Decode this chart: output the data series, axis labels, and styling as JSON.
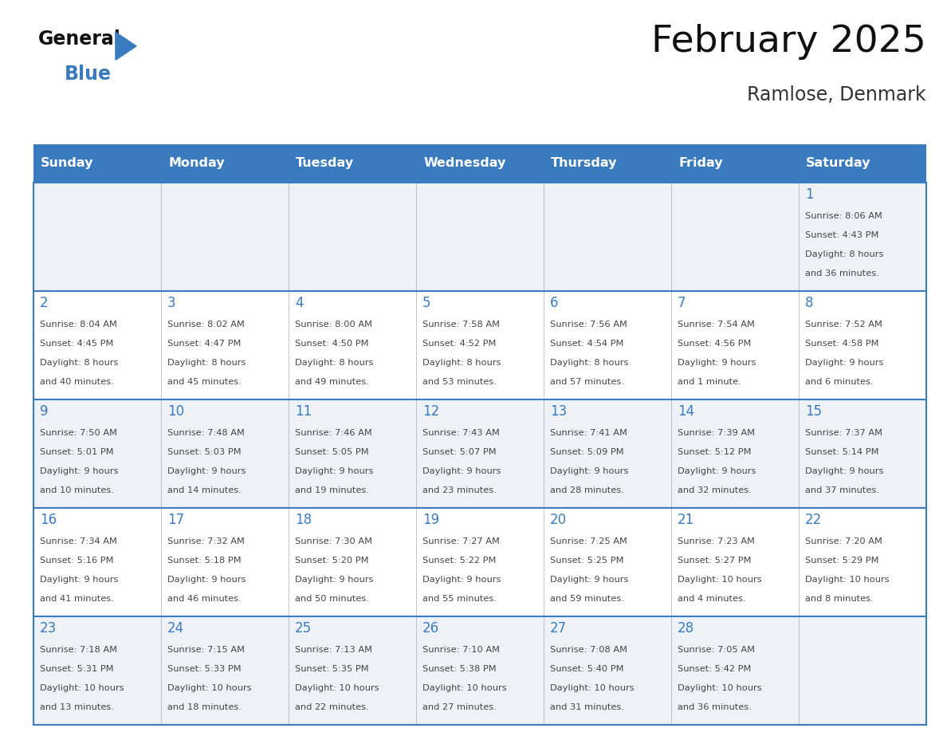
{
  "title": "February 2025",
  "subtitle": "Ramlose, Denmark",
  "days_of_week": [
    "Sunday",
    "Monday",
    "Tuesday",
    "Wednesday",
    "Thursday",
    "Friday",
    "Saturday"
  ],
  "header_bg_color": "#3a7bbf",
  "header_text_color": "#ffffff",
  "cell_bg_even": "#eef2f7",
  "cell_bg_odd": "#ffffff",
  "line_color": "#3a7bbf",
  "day_number_color": "#3a7bbf",
  "cell_text_color": "#444444",
  "title_color": "#111111",
  "subtitle_color": "#333333",
  "logo_general_color": "#111111",
  "logo_blue_color": "#3a7bbf",
  "calendar_data": [
    {
      "day": 1,
      "col": 6,
      "row": 0,
      "sunrise": "8:06 AM",
      "sunset": "4:43 PM",
      "dl1": "Daylight: 8 hours",
      "dl2": "and 36 minutes."
    },
    {
      "day": 2,
      "col": 0,
      "row": 1,
      "sunrise": "8:04 AM",
      "sunset": "4:45 PM",
      "dl1": "Daylight: 8 hours",
      "dl2": "and 40 minutes."
    },
    {
      "day": 3,
      "col": 1,
      "row": 1,
      "sunrise": "8:02 AM",
      "sunset": "4:47 PM",
      "dl1": "Daylight: 8 hours",
      "dl2": "and 45 minutes."
    },
    {
      "day": 4,
      "col": 2,
      "row": 1,
      "sunrise": "8:00 AM",
      "sunset": "4:50 PM",
      "dl1": "Daylight: 8 hours",
      "dl2": "and 49 minutes."
    },
    {
      "day": 5,
      "col": 3,
      "row": 1,
      "sunrise": "7:58 AM",
      "sunset": "4:52 PM",
      "dl1": "Daylight: 8 hours",
      "dl2": "and 53 minutes."
    },
    {
      "day": 6,
      "col": 4,
      "row": 1,
      "sunrise": "7:56 AM",
      "sunset": "4:54 PM",
      "dl1": "Daylight: 8 hours",
      "dl2": "and 57 minutes."
    },
    {
      "day": 7,
      "col": 5,
      "row": 1,
      "sunrise": "7:54 AM",
      "sunset": "4:56 PM",
      "dl1": "Daylight: 9 hours",
      "dl2": "and 1 minute."
    },
    {
      "day": 8,
      "col": 6,
      "row": 1,
      "sunrise": "7:52 AM",
      "sunset": "4:58 PM",
      "dl1": "Daylight: 9 hours",
      "dl2": "and 6 minutes."
    },
    {
      "day": 9,
      "col": 0,
      "row": 2,
      "sunrise": "7:50 AM",
      "sunset": "5:01 PM",
      "dl1": "Daylight: 9 hours",
      "dl2": "and 10 minutes."
    },
    {
      "day": 10,
      "col": 1,
      "row": 2,
      "sunrise": "7:48 AM",
      "sunset": "5:03 PM",
      "dl1": "Daylight: 9 hours",
      "dl2": "and 14 minutes."
    },
    {
      "day": 11,
      "col": 2,
      "row": 2,
      "sunrise": "7:46 AM",
      "sunset": "5:05 PM",
      "dl1": "Daylight: 9 hours",
      "dl2": "and 19 minutes."
    },
    {
      "day": 12,
      "col": 3,
      "row": 2,
      "sunrise": "7:43 AM",
      "sunset": "5:07 PM",
      "dl1": "Daylight: 9 hours",
      "dl2": "and 23 minutes."
    },
    {
      "day": 13,
      "col": 4,
      "row": 2,
      "sunrise": "7:41 AM",
      "sunset": "5:09 PM",
      "dl1": "Daylight: 9 hours",
      "dl2": "and 28 minutes."
    },
    {
      "day": 14,
      "col": 5,
      "row": 2,
      "sunrise": "7:39 AM",
      "sunset": "5:12 PM",
      "dl1": "Daylight: 9 hours",
      "dl2": "and 32 minutes."
    },
    {
      "day": 15,
      "col": 6,
      "row": 2,
      "sunrise": "7:37 AM",
      "sunset": "5:14 PM",
      "dl1": "Daylight: 9 hours",
      "dl2": "and 37 minutes."
    },
    {
      "day": 16,
      "col": 0,
      "row": 3,
      "sunrise": "7:34 AM",
      "sunset": "5:16 PM",
      "dl1": "Daylight: 9 hours",
      "dl2": "and 41 minutes."
    },
    {
      "day": 17,
      "col": 1,
      "row": 3,
      "sunrise": "7:32 AM",
      "sunset": "5:18 PM",
      "dl1": "Daylight: 9 hours",
      "dl2": "and 46 minutes."
    },
    {
      "day": 18,
      "col": 2,
      "row": 3,
      "sunrise": "7:30 AM",
      "sunset": "5:20 PM",
      "dl1": "Daylight: 9 hours",
      "dl2": "and 50 minutes."
    },
    {
      "day": 19,
      "col": 3,
      "row": 3,
      "sunrise": "7:27 AM",
      "sunset": "5:22 PM",
      "dl1": "Daylight: 9 hours",
      "dl2": "and 55 minutes."
    },
    {
      "day": 20,
      "col": 4,
      "row": 3,
      "sunrise": "7:25 AM",
      "sunset": "5:25 PM",
      "dl1": "Daylight: 9 hours",
      "dl2": "and 59 minutes."
    },
    {
      "day": 21,
      "col": 5,
      "row": 3,
      "sunrise": "7:23 AM",
      "sunset": "5:27 PM",
      "dl1": "Daylight: 10 hours",
      "dl2": "and 4 minutes."
    },
    {
      "day": 22,
      "col": 6,
      "row": 3,
      "sunrise": "7:20 AM",
      "sunset": "5:29 PM",
      "dl1": "Daylight: 10 hours",
      "dl2": "and 8 minutes."
    },
    {
      "day": 23,
      "col": 0,
      "row": 4,
      "sunrise": "7:18 AM",
      "sunset": "5:31 PM",
      "dl1": "Daylight: 10 hours",
      "dl2": "and 13 minutes."
    },
    {
      "day": 24,
      "col": 1,
      "row": 4,
      "sunrise": "7:15 AM",
      "sunset": "5:33 PM",
      "dl1": "Daylight: 10 hours",
      "dl2": "and 18 minutes."
    },
    {
      "day": 25,
      "col": 2,
      "row": 4,
      "sunrise": "7:13 AM",
      "sunset": "5:35 PM",
      "dl1": "Daylight: 10 hours",
      "dl2": "and 22 minutes."
    },
    {
      "day": 26,
      "col": 3,
      "row": 4,
      "sunrise": "7:10 AM",
      "sunset": "5:38 PM",
      "dl1": "Daylight: 10 hours",
      "dl2": "and 27 minutes."
    },
    {
      "day": 27,
      "col": 4,
      "row": 4,
      "sunrise": "7:08 AM",
      "sunset": "5:40 PM",
      "dl1": "Daylight: 10 hours",
      "dl2": "and 31 minutes."
    },
    {
      "day": 28,
      "col": 5,
      "row": 4,
      "sunrise": "7:05 AM",
      "sunset": "5:42 PM",
      "dl1": "Daylight: 10 hours",
      "dl2": "and 36 minutes."
    }
  ]
}
